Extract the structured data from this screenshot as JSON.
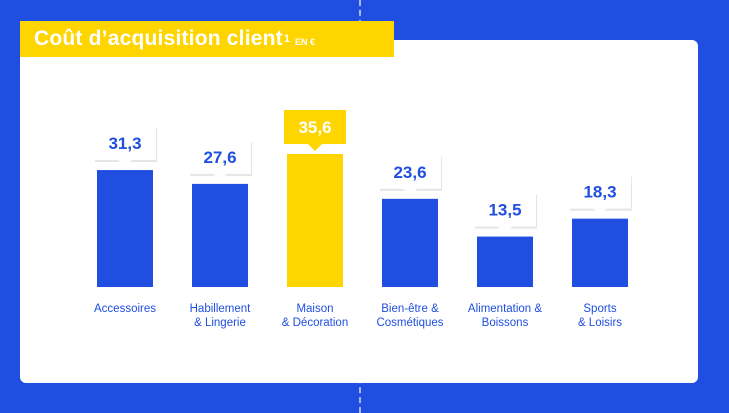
{
  "title": {
    "main": "Coût d’acquisition client",
    "footnote": "1",
    "unit": "EN €"
  },
  "colors": {
    "background": "#1f4ee0",
    "bar": "#1f4ee0",
    "highlight": "#ffd500",
    "label_text": "#1f4ee0",
    "highlight_label_text": "#ffffff"
  },
  "chart_data": {
    "type": "bar",
    "title": "Coût d’acquisition client",
    "ylabel": "",
    "xlabel": "",
    "unit": "EN €",
    "categories": [
      [
        "Accessoires"
      ],
      [
        "Habillement",
        "& Lingerie"
      ],
      [
        "Maison",
        "& Décoration"
      ],
      [
        "Bien-être &",
        "Cosmétiques"
      ],
      [
        "Alimentation &",
        "Boissons"
      ],
      [
        "Sports",
        "& Loisirs"
      ]
    ],
    "values": [
      31.3,
      27.6,
      35.6,
      23.6,
      13.5,
      18.3
    ],
    "value_labels": [
      "31,3",
      "27,6",
      "35,6",
      "23,6",
      "13,5",
      "18,3"
    ],
    "highlighted_index": 2,
    "ylim": [
      0,
      35.6
    ],
    "grid": false,
    "legend": "none"
  }
}
